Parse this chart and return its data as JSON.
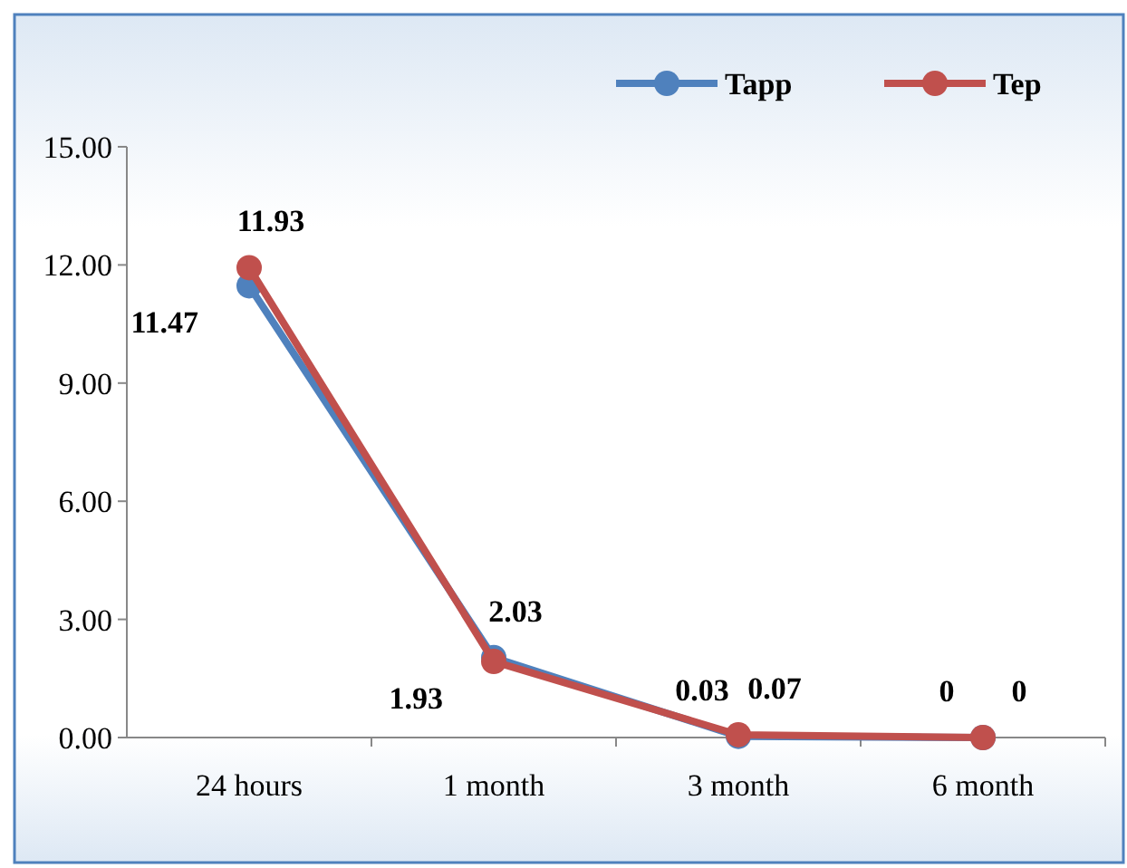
{
  "chart_data": {
    "type": "line",
    "categories": [
      "24 hours",
      "1 month",
      "3 month",
      "6 month"
    ],
    "series": [
      {
        "name": "Tapp",
        "color": "#4f81bd",
        "values": [
          11.47,
          2.03,
          0.03,
          0
        ]
      },
      {
        "name": "Tep",
        "color": "#c0504d",
        "values": [
          11.93,
          1.93,
          0.07,
          0
        ]
      }
    ],
    "ylim": [
      0,
      15
    ],
    "yticks": [
      {
        "value": 0,
        "label": "0.00"
      },
      {
        "value": 3,
        "label": "3.00"
      },
      {
        "value": 6,
        "label": "6.00"
      },
      {
        "value": 9,
        "label": "9.00"
      },
      {
        "value": 12,
        "label": "12.00"
      },
      {
        "value": 15,
        "label": "15.00"
      }
    ],
    "data_labels": true,
    "legend": "top right",
    "marker": "circle",
    "line_style": "solid",
    "grid": false
  }
}
